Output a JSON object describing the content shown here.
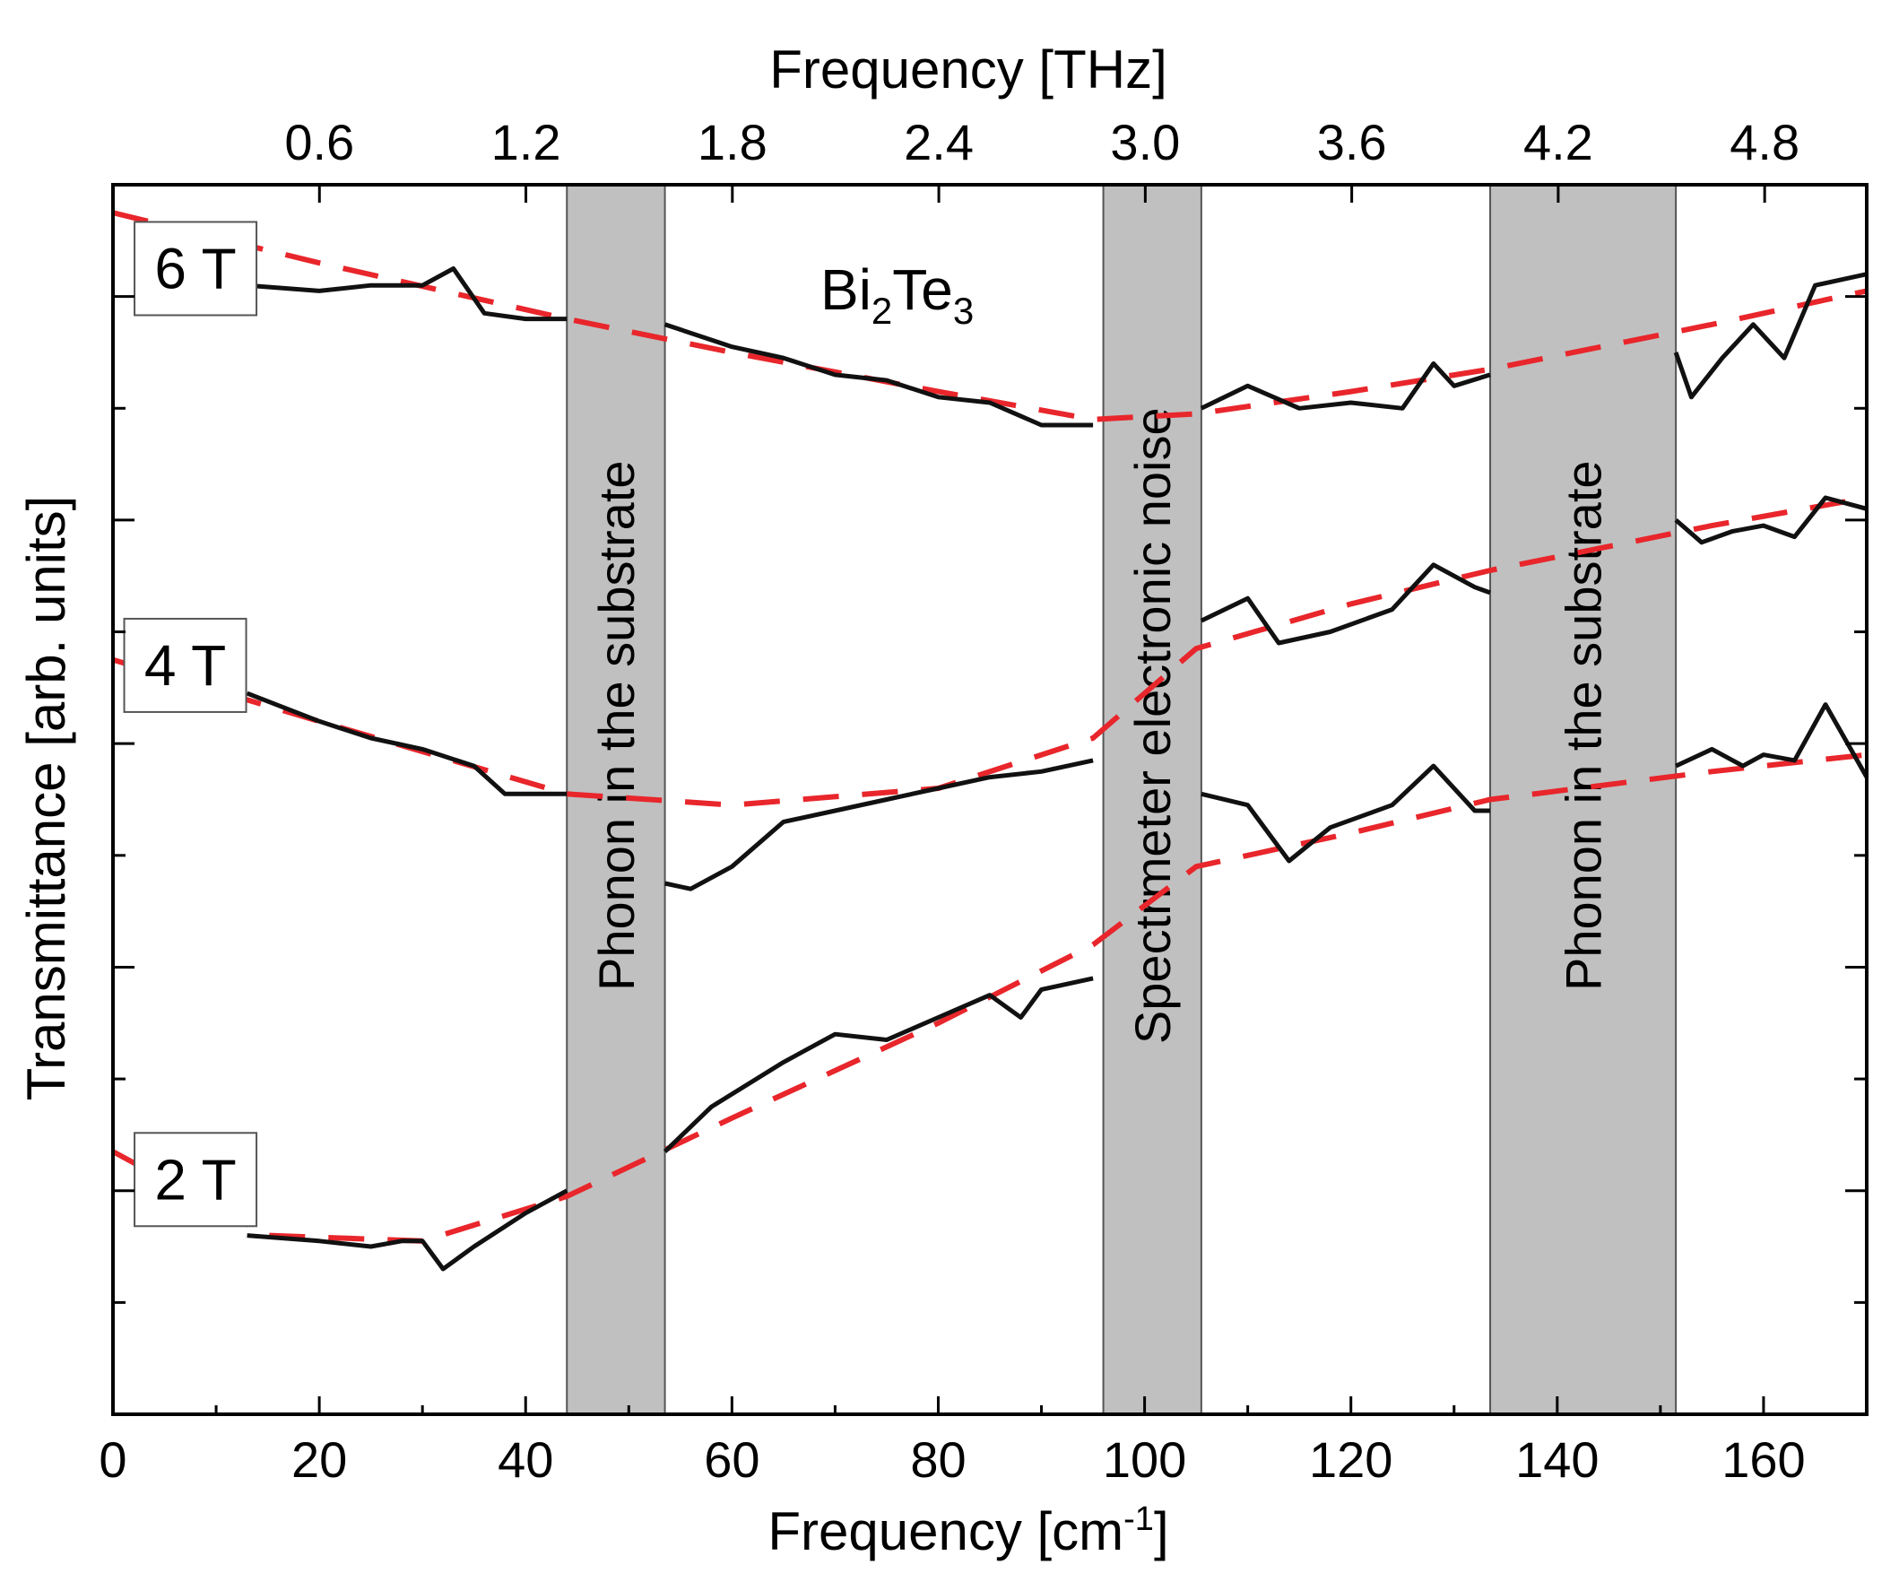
{
  "chart_data": {
    "type": "line",
    "material": {
      "base": "Bi",
      "sub1": "2",
      "mid": "Te",
      "sub2": "3"
    },
    "xlabel": {
      "text": "Frequency [cm",
      "sup": "-1",
      "close": "]"
    },
    "x2label": "Frequency [THz]",
    "ylabel": "Transmittance [arb. units]",
    "xlim": [
      0,
      170
    ],
    "ylim": [
      0,
      11
    ],
    "x_ticks": [
      "0",
      "20",
      "40",
      "60",
      "80",
      "100",
      "120",
      "140",
      "160"
    ],
    "x_tick_values": [
      0,
      20,
      40,
      60,
      80,
      100,
      120,
      140,
      160
    ],
    "x2_ticks": [
      "0.6",
      "1.2",
      "1.8",
      "2.4",
      "3.0",
      "3.6",
      "4.2",
      "4.8"
    ],
    "x2_tick_values": [
      0.6,
      1.2,
      1.8,
      2.4,
      3.0,
      3.6,
      4.2,
      4.8
    ],
    "thz_per_cm": 0.02998,
    "y_tick_values": [
      1,
      2,
      3,
      4,
      5,
      6,
      7,
      8,
      9,
      10
    ],
    "excluded_bands": [
      {
        "label": "Phonon in the substrate",
        "x_range": [
          44,
          53.5
        ]
      },
      {
        "label": "Spectrmeter electronic noise",
        "x_range": [
          96,
          105.5
        ]
      },
      {
        "label": "Phonon in the substrate",
        "x_range": [
          133.5,
          151.5
        ]
      }
    ],
    "series": [
      {
        "name": "6 T",
        "label_at": [
          8,
          10.25
        ],
        "measured": [
          [
            13,
            10.1
          ],
          [
            20,
            10.05
          ],
          [
            25,
            10.1
          ],
          [
            30,
            10.1
          ],
          [
            33,
            10.25
          ],
          [
            36,
            9.85
          ],
          [
            40,
            9.8
          ],
          [
            44,
            9.8
          ],
          [
            53.5,
            9.75
          ],
          [
            60,
            9.55
          ],
          [
            65,
            9.45
          ],
          [
            70,
            9.3
          ],
          [
            75,
            9.25
          ],
          [
            80,
            9.1
          ],
          [
            85,
            9.05
          ],
          [
            90,
            8.85
          ],
          [
            95,
            8.85
          ],
          [
            105.5,
            9.0
          ],
          [
            110,
            9.2
          ],
          [
            115,
            9.0
          ],
          [
            120,
            9.05
          ],
          [
            125,
            9.0
          ],
          [
            128,
            9.4
          ],
          [
            130,
            9.2
          ],
          [
            133.5,
            9.3
          ],
          [
            151.5,
            9.5
          ],
          [
            153,
            9.1
          ],
          [
            156,
            9.45
          ],
          [
            159,
            9.75
          ],
          [
            162,
            9.45
          ],
          [
            165,
            10.1
          ],
          [
            170,
            10.2
          ]
        ],
        "fit": [
          [
            0,
            10.75
          ],
          [
            20,
            10.3
          ],
          [
            44,
            9.8
          ],
          [
            60,
            9.5
          ],
          [
            80,
            9.15
          ],
          [
            95,
            8.9
          ],
          [
            105,
            8.95
          ],
          [
            120,
            9.15
          ],
          [
            133.5,
            9.35
          ],
          [
            155,
            9.75
          ],
          [
            170,
            10.05
          ]
        ]
      },
      {
        "name": "4 T",
        "label_at": [
          7,
          6.7
        ],
        "measured": [
          [
            13,
            6.45
          ],
          [
            20,
            6.2
          ],
          [
            25,
            6.05
          ],
          [
            30,
            5.95
          ],
          [
            35,
            5.8
          ],
          [
            38,
            5.55
          ],
          [
            44,
            5.55
          ],
          [
            53.5,
            4.75
          ],
          [
            56,
            4.7
          ],
          [
            60,
            4.9
          ],
          [
            65,
            5.3
          ],
          [
            70,
            5.4
          ],
          [
            75,
            5.5
          ],
          [
            80,
            5.6
          ],
          [
            85,
            5.7
          ],
          [
            90,
            5.75
          ],
          [
            95,
            5.85
          ],
          [
            105.5,
            7.1
          ],
          [
            110,
            7.3
          ],
          [
            113,
            6.9
          ],
          [
            118,
            7.0
          ],
          [
            124,
            7.2
          ],
          [
            128,
            7.6
          ],
          [
            132,
            7.4
          ],
          [
            133.5,
            7.35
          ],
          [
            151.5,
            8.0
          ],
          [
            154,
            7.8
          ],
          [
            157,
            7.9
          ],
          [
            160,
            7.95
          ],
          [
            163,
            7.85
          ],
          [
            166,
            8.2
          ],
          [
            170,
            8.1
          ]
        ],
        "fit": [
          [
            0,
            6.75
          ],
          [
            20,
            6.2
          ],
          [
            44,
            5.55
          ],
          [
            60,
            5.45
          ],
          [
            80,
            5.6
          ],
          [
            95,
            6.05
          ],
          [
            105,
            6.85
          ],
          [
            120,
            7.25
          ],
          [
            133.5,
            7.55
          ],
          [
            155,
            7.95
          ],
          [
            170,
            8.2
          ]
        ]
      },
      {
        "name": "2 T",
        "label_at": [
          8,
          2.1
        ],
        "measured": [
          [
            13,
            1.6
          ],
          [
            20,
            1.55
          ],
          [
            25,
            1.5
          ],
          [
            28,
            1.55
          ],
          [
            30,
            1.55
          ],
          [
            32,
            1.3
          ],
          [
            35,
            1.5
          ],
          [
            40,
            1.8
          ],
          [
            44,
            2.0
          ],
          [
            53.5,
            2.35
          ],
          [
            58,
            2.75
          ],
          [
            65,
            3.15
          ],
          [
            70,
            3.4
          ],
          [
            75,
            3.35
          ],
          [
            80,
            3.55
          ],
          [
            85,
            3.75
          ],
          [
            88,
            3.55
          ],
          [
            90,
            3.8
          ],
          [
            95,
            3.9
          ],
          [
            105.5,
            5.55
          ],
          [
            110,
            5.45
          ],
          [
            114,
            4.95
          ],
          [
            118,
            5.25
          ],
          [
            124,
            5.45
          ],
          [
            128,
            5.8
          ],
          [
            132,
            5.4
          ],
          [
            133.5,
            5.4
          ],
          [
            151.5,
            5.8
          ],
          [
            155,
            5.95
          ],
          [
            158,
            5.8
          ],
          [
            160,
            5.9
          ],
          [
            163,
            5.85
          ],
          [
            166,
            6.35
          ],
          [
            170,
            5.7
          ]
        ],
        "fit": [
          [
            0,
            2.35
          ],
          [
            15,
            1.6
          ],
          [
            30,
            1.55
          ],
          [
            44,
            1.95
          ],
          [
            60,
            2.65
          ],
          [
            80,
            3.5
          ],
          [
            95,
            4.2
          ],
          [
            105,
            4.9
          ],
          [
            120,
            5.2
          ],
          [
            133.5,
            5.5
          ],
          [
            155,
            5.75
          ],
          [
            170,
            5.9
          ]
        ]
      }
    ]
  }
}
